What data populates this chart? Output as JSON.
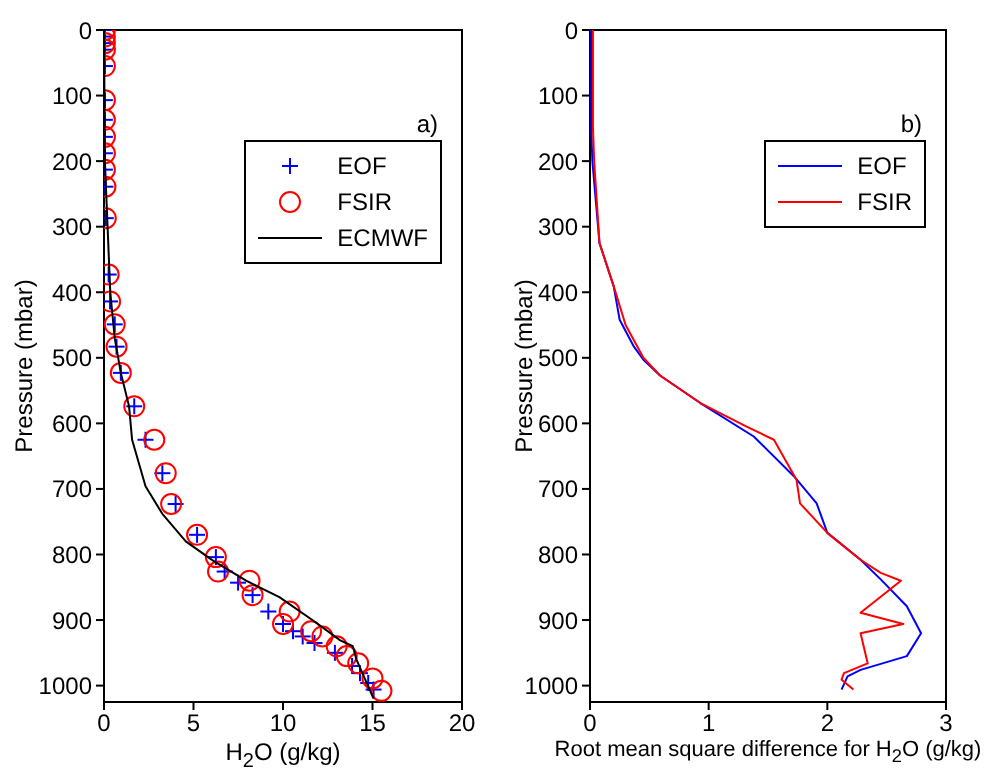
{
  "chart_data": [
    {
      "type": "scatter",
      "xlabel": "H$_{2}$O (g/kg)",
      "ylabel": "Pressure (mbar)",
      "annotations": [
        "a)"
      ],
      "xlim": [
        0,
        20
      ],
      "xticks": [
        0,
        5,
        10,
        15,
        20
      ],
      "ylim": [
        1025,
        0
      ],
      "yticks": [
        0,
        100,
        200,
        300,
        400,
        500,
        600,
        700,
        800,
        900,
        1000
      ],
      "grid": false,
      "legend": "top right",
      "series": [
        {
          "name": "EOF",
          "color": "#0000ff",
          "marker": "cross",
          "x": [
            0.05,
            0.05,
            0.05,
            0.05,
            0.05,
            0.05,
            0.05,
            0.05,
            0.05,
            0.05,
            0.08,
            0.1,
            0.26,
            0.34,
            0.6,
            0.7,
            0.94,
            1.69,
            2.32,
            3.26,
            4.0,
            5.2,
            6.25,
            6.74,
            7.49,
            8.3,
            9.18,
            10.0,
            10.56,
            11.1,
            11.76,
            12.9,
            13.86,
            14.3,
            14.76,
            15.06
          ],
          "values": [
            0,
            10,
            20,
            30,
            55,
            107,
            137,
            163,
            188,
            213,
            239,
            287,
            373,
            414,
            449,
            483,
            523,
            574,
            625,
            676,
            723,
            770,
            804,
            826,
            843,
            862,
            887,
            906,
            917,
            925,
            935,
            950,
            970,
            981,
            996,
            1006
          ]
        },
        {
          "name": "FSIR",
          "color": "#ff0000",
          "marker": "circle",
          "x": [
            0.05,
            0.05,
            0.05,
            0.05,
            0.05,
            0.05,
            0.05,
            0.05,
            0.05,
            0.05,
            0.08,
            0.1,
            0.26,
            0.34,
            0.6,
            0.7,
            0.94,
            1.69,
            2.81,
            3.45,
            3.75,
            5.2,
            6.25,
            6.37,
            8.13,
            8.3,
            10.37,
            10.0,
            11.57,
            12.2,
            13.0,
            13.56,
            14.2,
            15.0,
            15.5
          ],
          "values": [
            0,
            10,
            20,
            30,
            55,
            107,
            137,
            163,
            188,
            213,
            239,
            287,
            373,
            414,
            449,
            483,
            523,
            574,
            625,
            676,
            723,
            770,
            804,
            826,
            840,
            862,
            887,
            906,
            917,
            925,
            940,
            955,
            966,
            989,
            1008
          ]
        },
        {
          "name": "ECMWF",
          "color": "#000000",
          "type": "line",
          "marker": "none",
          "x": [
            0,
            0.05,
            0.2,
            0.35,
            0.6,
            0.94,
            1.4,
            1.57,
            2.32,
            3.26,
            4.57,
            6.07,
            7.94,
            9.8,
            11.7,
            13.2,
            13.9,
            14.1,
            15.06
          ],
          "values": [
            0,
            200,
            300,
            400,
            470,
            523,
            574,
            625,
            696,
            738,
            780,
            809,
            840,
            865,
            901,
            931,
            940,
            960,
            1020
          ]
        }
      ]
    },
    {
      "type": "line",
      "xlabel": "Root mean square difference for H$_{2}$O (g/kg)",
      "ylabel": "Pressure (mbar)",
      "annotations": [
        "b)"
      ],
      "xlim": [
        0,
        3
      ],
      "xticks": [
        0,
        1,
        2,
        3
      ],
      "ylim": [
        1025,
        0
      ],
      "yticks": [
        0,
        100,
        200,
        300,
        400,
        500,
        600,
        700,
        800,
        900,
        1000
      ],
      "grid": false,
      "legend": "top right",
      "series": [
        {
          "name": "EOF",
          "color": "#0000ff",
          "x": [
            0.01,
            0.01,
            0.02,
            0.08,
            0.2,
            0.25,
            0.37,
            0.45,
            0.59,
            0.93,
            1.38,
            1.72,
            1.91,
            2.0,
            2.28,
            2.45,
            2.67,
            2.79,
            2.67,
            2.28,
            2.17,
            2.12
          ],
          "values": [
            0,
            150,
            200,
            325,
            391,
            442,
            483,
            503,
            527,
            569,
            620,
            681,
            722,
            767,
            808,
            838,
            879,
            920,
            955,
            976,
            986,
            1006
          ]
        },
        {
          "name": "FSIR",
          "color": "#ff0000",
          "x": [
            0.025,
            0.025,
            0.035,
            0.08,
            0.2,
            0.3,
            0.45,
            0.59,
            0.93,
            1.32,
            1.55,
            1.74,
            1.77,
            2.0,
            2.28,
            2.45,
            2.62,
            2.28,
            2.64,
            2.28,
            2.34,
            2.14,
            2.12,
            2.22
          ],
          "values": [
            0,
            150,
            200,
            325,
            391,
            450,
            500,
            527,
            569,
            605,
            625,
            686,
            722,
            767,
            808,
            828,
            840,
            889,
            906,
            920,
            966,
            981,
            991,
            1006
          ]
        }
      ]
    }
  ]
}
